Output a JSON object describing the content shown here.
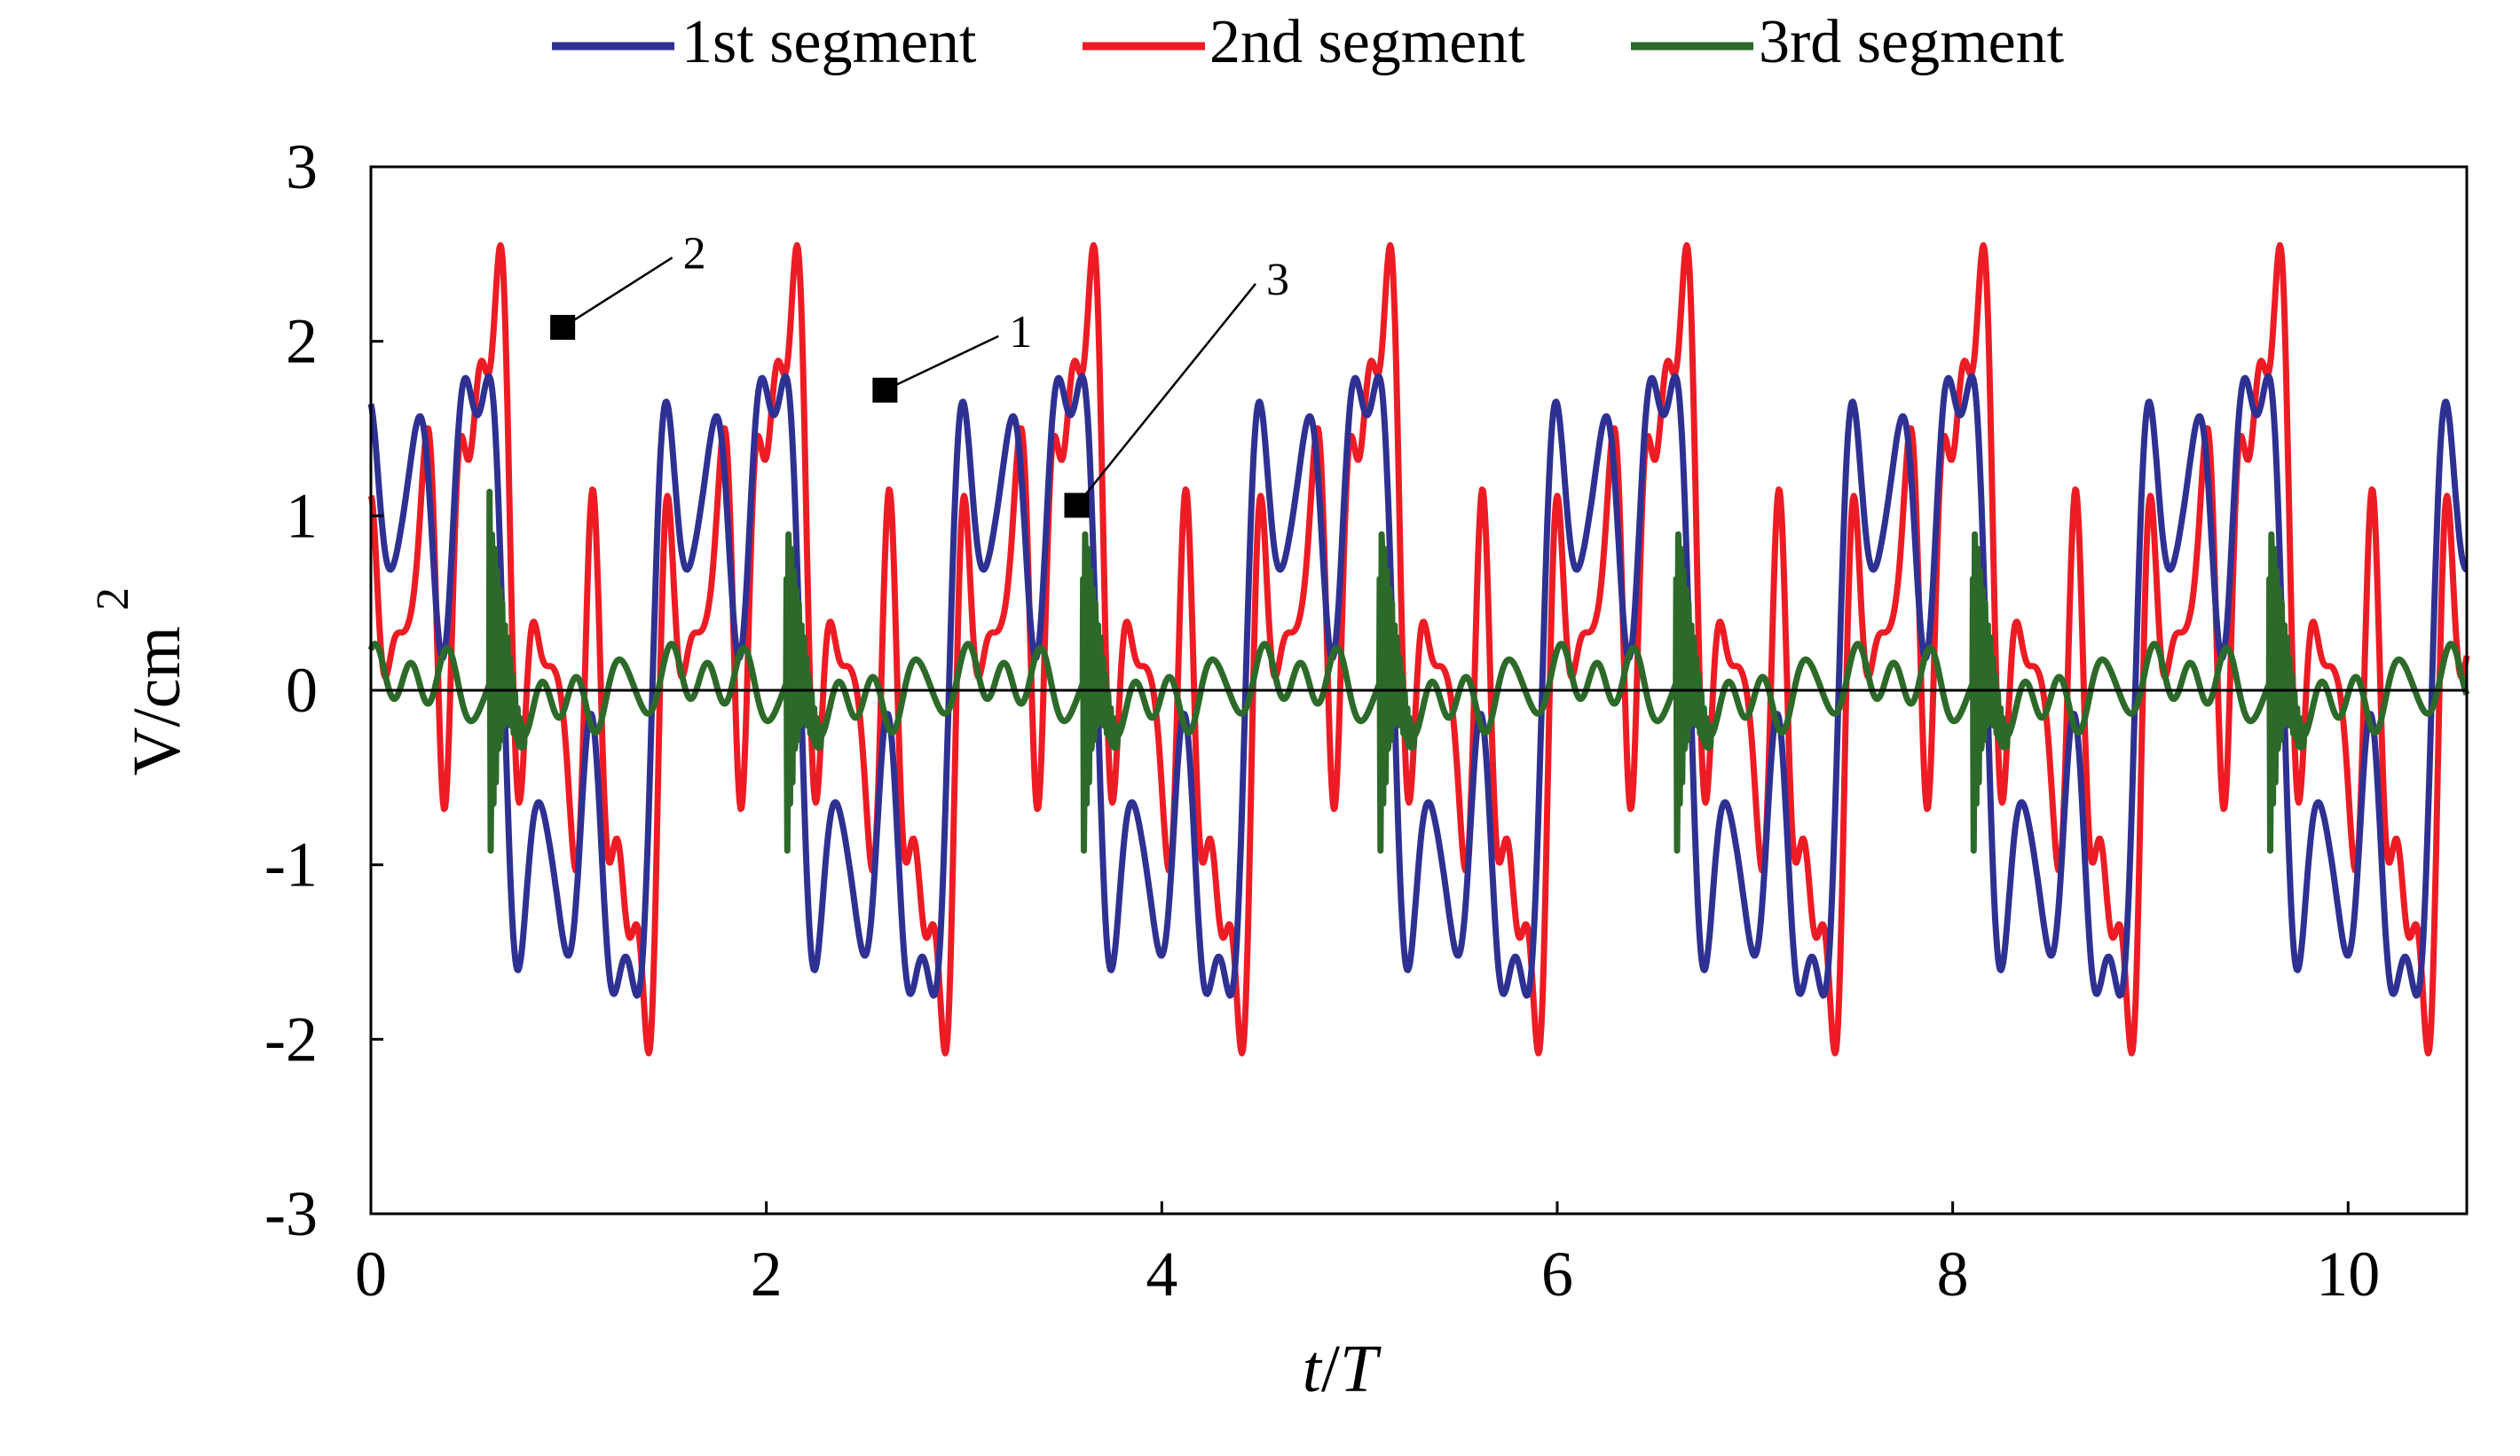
{
  "chart_data": {
    "type": "line",
    "title": "",
    "xlabel_italic_1": "t",
    "xlabel_sep": "/",
    "xlabel_italic_2": "T",
    "ylabel_base": "V/cm",
    "ylabel_sup": "2",
    "xlim": [
      0,
      10.6
    ],
    "ylim": [
      -3,
      3
    ],
    "x_ticks": [
      0,
      2,
      4,
      6,
      8,
      10
    ],
    "x_tick_labels": [
      "0",
      "2",
      "4",
      "6",
      "8",
      "10"
    ],
    "y_ticks": [
      -3,
      -2,
      -1,
      0,
      1,
      2,
      3
    ],
    "y_tick_labels": [
      "-3",
      "-2",
      "-1",
      "0",
      "1",
      "2",
      "3"
    ],
    "zero_line": true,
    "grid": false,
    "legend_position": "top-center",
    "period_t_over_T": 1.5,
    "series": [
      {
        "name": "1st segment",
        "color": "#2e3192",
        "sample_step": 0.005,
        "peak": 1.8,
        "trough": -1.75,
        "harmonics": [
          {
            "n": 1,
            "a": 0.86,
            "phi": 0.2
          },
          {
            "n": 3,
            "a": 0.45,
            "phi": 0.9
          },
          {
            "n": 5,
            "a": 0.35,
            "phi": 2.4
          },
          {
            "n": 7,
            "a": 0.22,
            "phi": 1.4
          },
          {
            "n": 9,
            "a": 0.14,
            "phi": 3.1
          }
        ]
      },
      {
        "name": "2nd segment",
        "color": "#ed1c24",
        "sample_step": 0.005,
        "peak": 2.55,
        "trough": -2.08,
        "harmonics": [
          {
            "n": 1,
            "a": 0.95,
            "phi": -0.6
          },
          {
            "n": 3,
            "a": 0.6,
            "phi": 0.3
          },
          {
            "n": 5,
            "a": 0.45,
            "phi": 1.9
          },
          {
            "n": 7,
            "a": 0.42,
            "phi": 0.7
          },
          {
            "n": 9,
            "a": 0.35,
            "phi": 2.6
          },
          {
            "n": 11,
            "a": 0.25,
            "phi": 1.2
          },
          {
            "n": 13,
            "a": 0.18,
            "phi": 2.9
          }
        ]
      },
      {
        "name": "3rd segment",
        "color": "#2d6a2a",
        "sample_step": 0.002,
        "peak": 1.15,
        "trough": -0.6,
        "harmonics": [
          {
            "n": 1,
            "a": 0.08,
            "phi": 1.0
          },
          {
            "n": 5,
            "a": 0.1,
            "phi": 0.4
          },
          {
            "n": 7,
            "a": 0.12,
            "phi": 1.9
          },
          {
            "n": 9,
            "a": 0.06,
            "phi": 0.2
          }
        ],
        "burst": {
          "phase_start": 0.4,
          "duration": 0.12,
          "amplitude": 1.1,
          "cycles": 14
        }
      }
    ],
    "annotations": [
      {
        "label": "2",
        "point": [
          0.97,
          2.08
        ],
        "text_at": [
          1.65,
          2.5
        ]
      },
      {
        "label": "1",
        "point": [
          2.6,
          1.72
        ],
        "text_at": [
          3.3,
          2.05
        ]
      },
      {
        "label": "3",
        "point": [
          3.57,
          1.06
        ],
        "text_at": [
          4.6,
          2.35
        ]
      }
    ]
  }
}
